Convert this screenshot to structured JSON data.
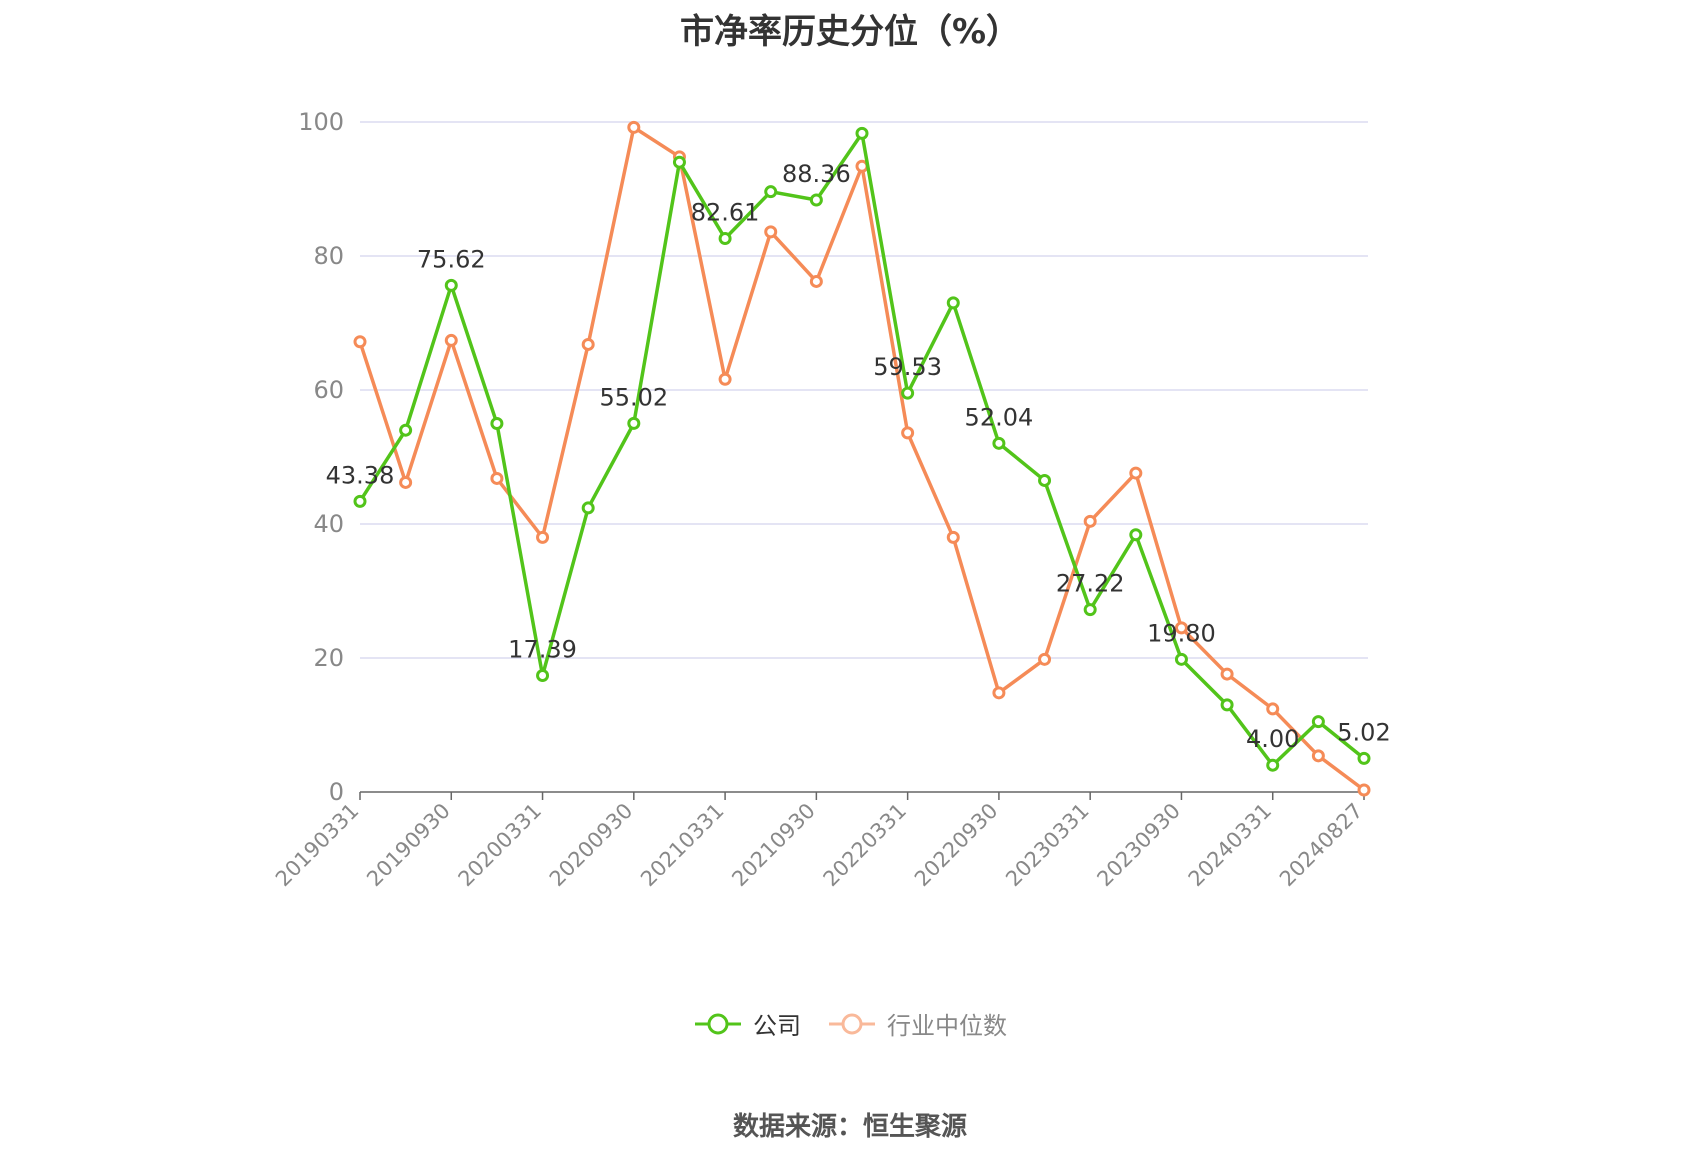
{
  "title": "市净率历史分位（%）",
  "source": "数据来源：恒生聚源",
  "colors": {
    "company": "#52c41a",
    "industry": "#f58b57",
    "grid": "#dcdcf0",
    "axis": "#666666",
    "tick_text": "#888888",
    "label_text": "#333333"
  },
  "chart_data": {
    "type": "line",
    "ylim": [
      0,
      100
    ],
    "yticks": [
      0,
      20,
      40,
      60,
      80,
      100
    ],
    "x": [
      "20190331",
      "20190630",
      "20190930",
      "20191231",
      "20200331",
      "20200630",
      "20200930",
      "20201231",
      "20210331",
      "20210630",
      "20210930",
      "20211231",
      "20220331",
      "20220630",
      "20220930",
      "20221231",
      "20230331",
      "20230630",
      "20230930",
      "20231231",
      "20240331",
      "20240630",
      "20240827"
    ],
    "xticklabels": [
      "20190331",
      "20190930",
      "20200331",
      "20200930",
      "20210331",
      "20210930",
      "20220331",
      "20220930",
      "20230331",
      "20230930",
      "20240331",
      "20240827"
    ],
    "series": [
      {
        "name": "公司",
        "color": "#52c41a",
        "values": [
          43.38,
          54.0,
          75.62,
          55.0,
          17.39,
          42.4,
          55.02,
          94.0,
          82.61,
          89.6,
          88.36,
          98.3,
          59.53,
          73.0,
          52.04,
          46.5,
          27.22,
          38.4,
          19.8,
          13.0,
          4.0,
          10.5,
          5.02
        ],
        "labels": [
          "43.38",
          "",
          "75.62",
          "",
          "17.39",
          "",
          "55.02",
          "",
          "82.61",
          "",
          "88.36",
          "",
          "59.53",
          "",
          "52.04",
          "",
          "27.22",
          "",
          "19.80",
          "",
          "4.00",
          "",
          "5.02"
        ]
      },
      {
        "name": "行业中位数",
        "color": "#f58b57",
        "values": [
          67.2,
          46.2,
          67.4,
          46.8,
          38.0,
          66.8,
          99.2,
          94.8,
          61.6,
          83.6,
          76.2,
          93.4,
          53.6,
          38.0,
          14.8,
          19.8,
          40.4,
          47.6,
          24.5,
          17.6,
          12.4,
          5.4,
          0.3
        ]
      }
    ]
  },
  "legend": {
    "items": [
      "公司",
      "行业中位数"
    ]
  }
}
